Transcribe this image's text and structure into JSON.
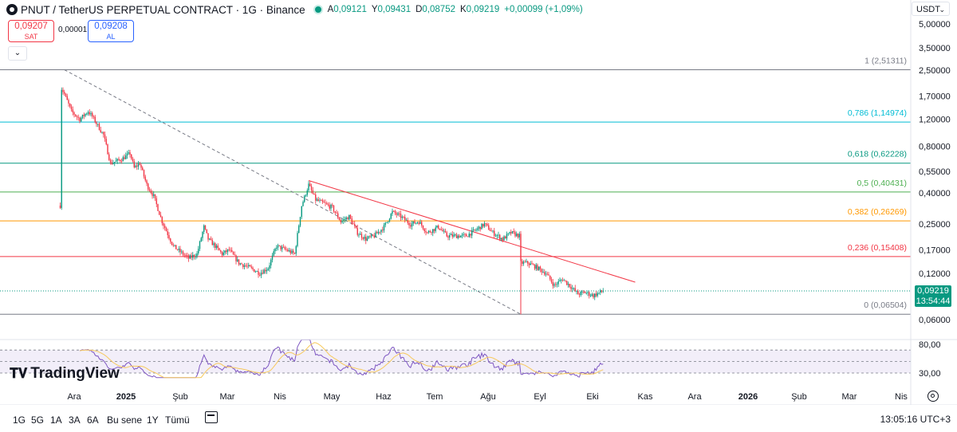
{
  "header": {
    "title": "PNUT / TetherUS PERPETUAL CONTRACT · 1G · Binance",
    "ohlc": [
      {
        "k": "A",
        "v": "0,09121"
      },
      {
        "k": "Y",
        "v": "0,09431"
      },
      {
        "k": "D",
        "v": "0,08752"
      },
      {
        "k": "K",
        "v": "0,09219"
      },
      {
        "k": "",
        "v": "+0,00099 (+1,09%)"
      }
    ]
  },
  "trade": {
    "sell_price": "0,09207",
    "sell_label": "SAT",
    "spread": "0,00001",
    "buy_price": "0,09208",
    "buy_label": "AL"
  },
  "currency": "USDT",
  "last_price": {
    "price": "0,09219",
    "countdown": "13:54:44"
  },
  "price_axis_labels": [
    {
      "t": "5,00000",
      "v": 5.0
    },
    {
      "t": "3,50000",
      "v": 3.5
    },
    {
      "t": "2,50000",
      "v": 2.5
    },
    {
      "t": "1,70000",
      "v": 1.7
    },
    {
      "t": "1,20000",
      "v": 1.2
    },
    {
      "t": "0,80000",
      "v": 0.8
    },
    {
      "t": "0,55000",
      "v": 0.55
    },
    {
      "t": "0,40000",
      "v": 0.4
    },
    {
      "t": "0,25000",
      "v": 0.25
    },
    {
      "t": "0,17000",
      "v": 0.17
    },
    {
      "t": "0,12000",
      "v": 0.12
    },
    {
      "t": "0,06000",
      "v": 0.06
    }
  ],
  "fib_levels": [
    {
      "label": "1 (2,51311)",
      "v": 2.51311,
      "color": "#787b86"
    },
    {
      "label": "0,786 (1,14974)",
      "v": 1.14974,
      "color": "#00bcd4"
    },
    {
      "label": "0,618 (0,62228)",
      "v": 0.62228,
      "color": "#089981"
    },
    {
      "label": "0,5 (0,40431)",
      "v": 0.40431,
      "color": "#4caf50"
    },
    {
      "label": "0,382 (0,26269)",
      "v": 0.26269,
      "color": "#ff9800"
    },
    {
      "label": "0,236 (0,15408)",
      "v": 0.15408,
      "color": "#f23645"
    },
    {
      "label": "0 (0,06504)",
      "v": 0.06504,
      "color": "#787b86"
    }
  ],
  "rsi_axis_labels": [
    {
      "t": "80,00",
      "v": 80
    },
    {
      "t": "30,00",
      "v": 30
    }
  ],
  "time_axis_labels": [
    "Ara",
    "2025",
    "Şub",
    "Mar",
    "Nis",
    "May",
    "Haz",
    "Tem",
    "Ağu",
    "Eyl",
    "Eki",
    "Kas",
    "Ara",
    "2026",
    "Şub",
    "Mar",
    "Nis"
  ],
  "timeframes": [
    "1G",
    "5G",
    "1A",
    "3A",
    "6A",
    "Bu sene",
    "1Y",
    "Tümü"
  ],
  "clock": "13:05:16 UTC+3",
  "brand": "TradingView",
  "colors": {
    "up": "#089981",
    "down": "#f23645",
    "rsi": "#7e57c2",
    "rsi_ma": "#f7c95c"
  },
  "chart_data": {
    "type": "candlestick",
    "scale": "log",
    "ylim": [
      0.055,
      5.5
    ],
    "grid": false,
    "x_start": "2024-11-14",
    "x_end": "2025-12-08",
    "close_anchors": [
      [
        "2024-11-14",
        0.33
      ],
      [
        "2024-11-15",
        1.9
      ],
      [
        "2024-11-17",
        1.75
      ],
      [
        "2024-11-22",
        1.35
      ],
      [
        "2024-11-28",
        1.2
      ],
      [
        "2024-12-04",
        1.35
      ],
      [
        "2024-12-07",
        1.25
      ],
      [
        "2024-12-15",
        0.95
      ],
      [
        "2024-12-20",
        0.62
      ],
      [
        "2024-12-28",
        0.66
      ],
      [
        "2025-01-03",
        0.72
      ],
      [
        "2025-01-06",
        0.58
      ],
      [
        "2025-01-10",
        0.62
      ],
      [
        "2025-01-15",
        0.45
      ],
      [
        "2025-01-20",
        0.38
      ],
      [
        "2025-01-26",
        0.26
      ],
      [
        "2025-02-03",
        0.18
      ],
      [
        "2025-02-10",
        0.16
      ],
      [
        "2025-02-14",
        0.15
      ],
      [
        "2025-02-20",
        0.16
      ],
      [
        "2025-02-25",
        0.24
      ],
      [
        "2025-02-28",
        0.2
      ],
      [
        "2025-03-05",
        0.18
      ],
      [
        "2025-03-10",
        0.16
      ],
      [
        "2025-03-15",
        0.17
      ],
      [
        "2025-03-22",
        0.14
      ],
      [
        "2025-03-30",
        0.13
      ],
      [
        "2025-04-06",
        0.12
      ],
      [
        "2025-04-12",
        0.13
      ],
      [
        "2025-04-18",
        0.18
      ],
      [
        "2025-04-25",
        0.17
      ],
      [
        "2025-05-01",
        0.16
      ],
      [
        "2025-05-06",
        0.33
      ],
      [
        "2025-05-11",
        0.45
      ],
      [
        "2025-05-16",
        0.36
      ],
      [
        "2025-05-22",
        0.34
      ],
      [
        "2025-05-28",
        0.32
      ],
      [
        "2025-06-03",
        0.26
      ],
      [
        "2025-06-09",
        0.28
      ],
      [
        "2025-06-15",
        0.22
      ],
      [
        "2025-06-21",
        0.2
      ],
      [
        "2025-06-27",
        0.21
      ],
      [
        "2025-07-04",
        0.24
      ],
      [
        "2025-07-10",
        0.3
      ],
      [
        "2025-07-16",
        0.28
      ],
      [
        "2025-07-23",
        0.25
      ],
      [
        "2025-07-29",
        0.26
      ],
      [
        "2025-08-04",
        0.22
      ],
      [
        "2025-08-12",
        0.24
      ],
      [
        "2025-08-18",
        0.21
      ],
      [
        "2025-08-25",
        0.21
      ],
      [
        "2025-09-01",
        0.21
      ],
      [
        "2025-09-08",
        0.23
      ],
      [
        "2025-09-14",
        0.25
      ],
      [
        "2025-09-20",
        0.22
      ],
      [
        "2025-09-27",
        0.2
      ],
      [
        "2025-10-03",
        0.22
      ],
      [
        "2025-10-09",
        0.21
      ],
      [
        "2025-10-10",
        0.14
      ],
      [
        "2025-10-15",
        0.14
      ],
      [
        "2025-10-22",
        0.13
      ],
      [
        "2025-10-28",
        0.12
      ],
      [
        "2025-11-03",
        0.1
      ],
      [
        "2025-11-09",
        0.11
      ],
      [
        "2025-11-14",
        0.1
      ],
      [
        "2025-11-20",
        0.088
      ],
      [
        "2025-11-25",
        0.09
      ],
      [
        "2025-12-01",
        0.086
      ],
      [
        "2025-12-08",
        0.09219
      ]
    ],
    "trend_lines": [
      {
        "from": [
          "2024-11-17",
          2.51311
        ],
        "to": [
          "2025-10-10",
          0.06504
        ],
        "color": "#787b86",
        "style": "dashed"
      },
      {
        "from": [
          "2025-05-11",
          0.48
        ],
        "to": [
          "2025-12-31",
          0.105
        ],
        "color": "#f23645",
        "style": "solid"
      }
    ],
    "rsi_range": [
      30,
      80
    ],
    "rsi_band_lines": [
      70,
      30,
      50
    ]
  }
}
